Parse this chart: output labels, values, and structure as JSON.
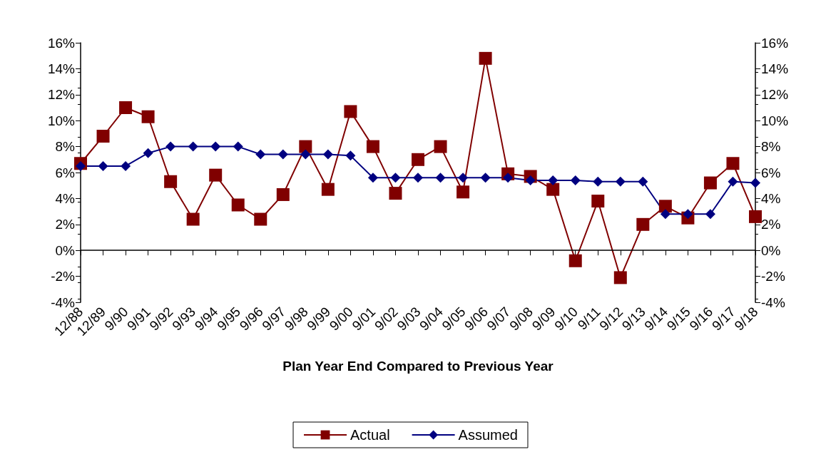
{
  "chart_data": {
    "type": "line",
    "xlabel": "Plan Year End Compared to Previous Year",
    "categories": [
      "12/88",
      "12/89",
      "9/90",
      "9/91",
      "9/92",
      "9/93",
      "9/94",
      "9/95",
      "9/96",
      "9/97",
      "9/98",
      "9/99",
      "9/00",
      "9/01",
      "9/02",
      "9/03",
      "9/04",
      "9/05",
      "9/06",
      "9/07",
      "9/08",
      "9/09",
      "9/10",
      "9/11",
      "9/12",
      "9/13",
      "9/14",
      "9/15",
      "9/16",
      "9/17",
      "9/18"
    ],
    "series": [
      {
        "name": "Actual",
        "color": "#800000",
        "marker": "square",
        "values": [
          6.7,
          8.8,
          11.0,
          10.3,
          5.3,
          2.4,
          5.8,
          3.5,
          2.4,
          4.3,
          8.0,
          4.7,
          10.7,
          8.0,
          4.4,
          7.0,
          8.0,
          4.5,
          14.8,
          5.9,
          5.7,
          4.7,
          -0.8,
          3.8,
          -2.1,
          2.0,
          3.4,
          2.5,
          5.2,
          6.7,
          2.6
        ]
      },
      {
        "name": "Assumed",
        "color": "#000080",
        "marker": "diamond",
        "values": [
          6.5,
          6.5,
          6.5,
          7.5,
          8.0,
          8.0,
          8.0,
          8.0,
          7.4,
          7.4,
          7.4,
          7.4,
          7.3,
          5.6,
          5.6,
          5.6,
          5.6,
          5.6,
          5.6,
          5.6,
          5.4,
          5.4,
          5.4,
          5.3,
          5.3,
          5.3,
          2.8,
          2.8,
          2.8,
          5.3,
          5.2
        ]
      }
    ],
    "ylim": [
      -4,
      16
    ],
    "yticks": [
      {
        "value": -4,
        "label": "-4%"
      },
      {
        "value": -2,
        "label": "-2%"
      },
      {
        "value": 0,
        "label": "0%"
      },
      {
        "value": 2,
        "label": "2%"
      },
      {
        "value": 4,
        "label": "4%"
      },
      {
        "value": 6,
        "label": "6%"
      },
      {
        "value": 8,
        "label": "8%"
      },
      {
        "value": 10,
        "label": "10%"
      },
      {
        "value": 12,
        "label": "12%"
      },
      {
        "value": 14,
        "label": "14%"
      },
      {
        "value": 16,
        "label": "16%"
      }
    ],
    "y2lim": [
      -4,
      16
    ],
    "y2ticks": [
      {
        "value": -4,
        "label": "-4%"
      },
      {
        "value": -2,
        "label": "-2%"
      },
      {
        "value": 0,
        "label": "0%"
      },
      {
        "value": 2,
        "label": "2%"
      },
      {
        "value": 4,
        "label": "4%"
      },
      {
        "value": 6,
        "label": "6%"
      },
      {
        "value": 8,
        "label": "8%"
      },
      {
        "value": 10,
        "label": "10%"
      },
      {
        "value": 12,
        "label": "12%"
      },
      {
        "value": 14,
        "label": "14%"
      },
      {
        "value": 16,
        "label": "16%"
      }
    ],
    "ref_lines": [
      {
        "axis": "y",
        "value": 0,
        "color": "#000000"
      }
    ],
    "grid": false,
    "legend": "bottom",
    "line_style": "solid"
  }
}
